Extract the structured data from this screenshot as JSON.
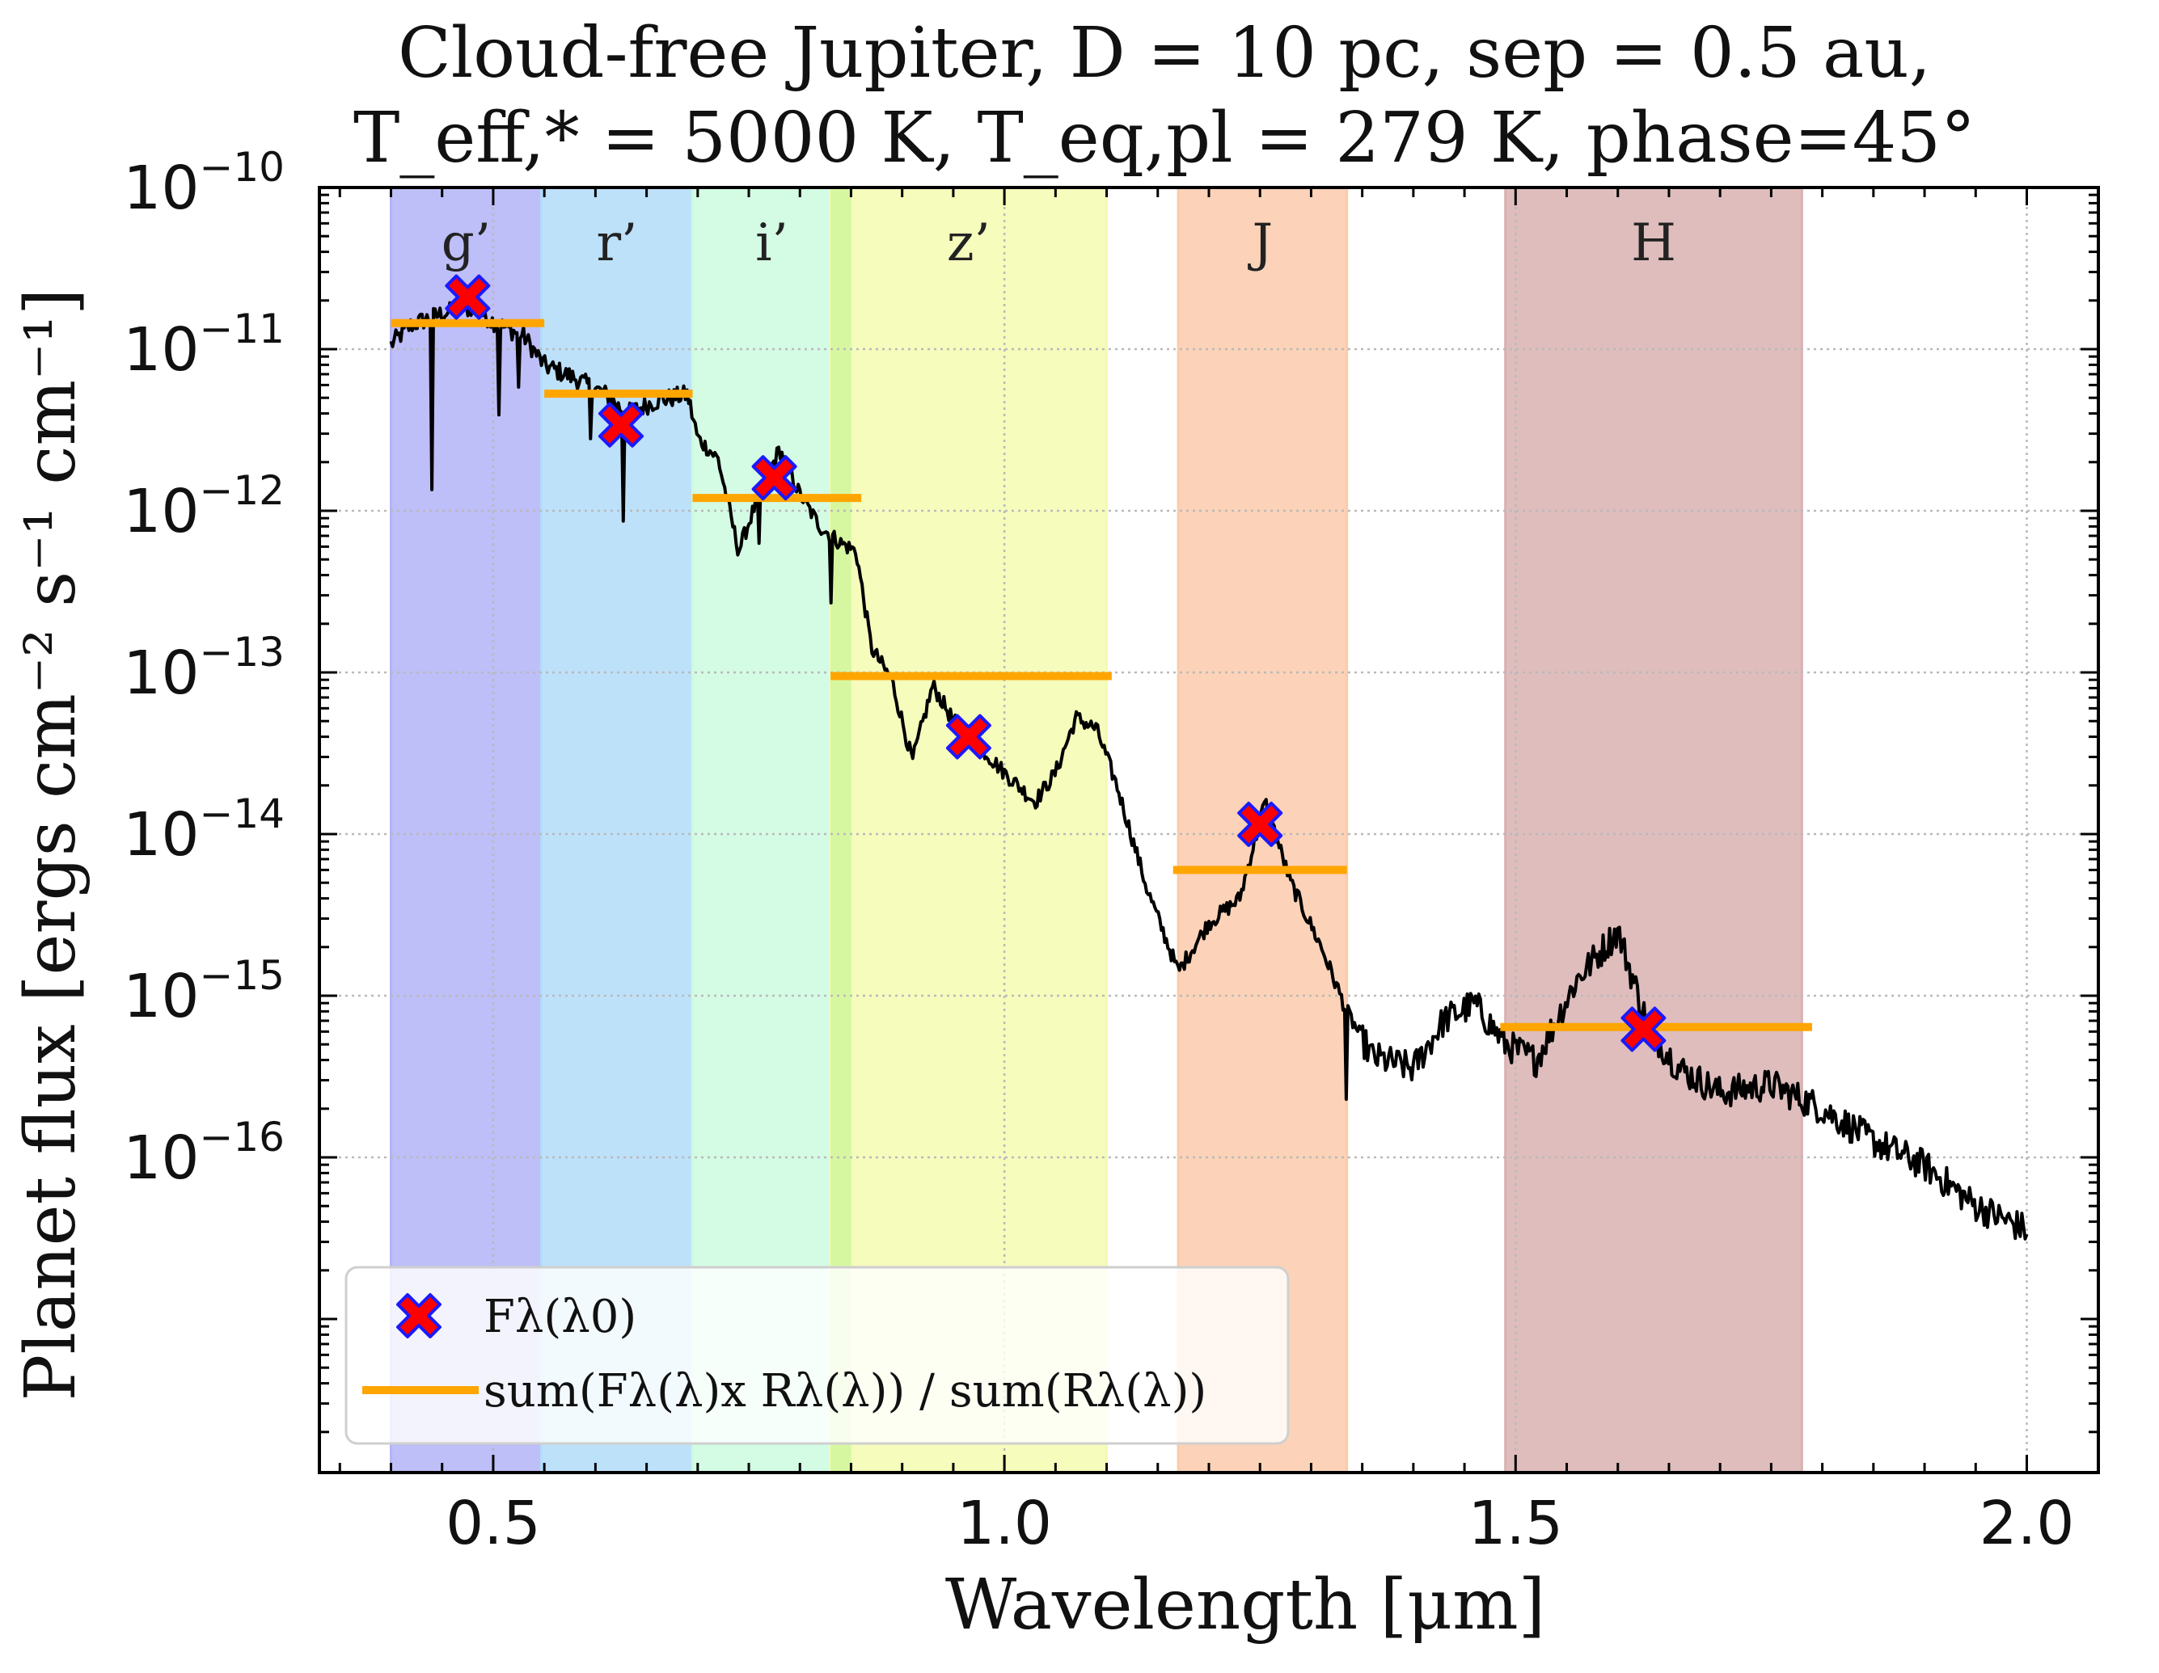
{
  "chart_data": {
    "type": "line",
    "title": "Cloud-free Jupiter, D = 10 pc, sep = 0.5 au,",
    "title_line2": "T_eff,* = 5000 K, T_eq,pl = 279 K, phase=45°",
    "xlabel": "Wavelength [μm]",
    "ylabel": "Planet flux [ergs cm⁻² s⁻¹ cm⁻¹]",
    "xlim": [
      0.33,
      2.07
    ],
    "ylim_log10": [
      -17.95,
      -10.0
    ],
    "y_scale": "log",
    "x_ticks": [
      {
        "value": 0.5,
        "label": "0.5"
      },
      {
        "value": 1.0,
        "label": "1.0"
      },
      {
        "value": 1.5,
        "label": "1.5"
      },
      {
        "value": 2.0,
        "label": "2.0"
      }
    ],
    "y_ticks": [
      {
        "exp": -10,
        "base": "10",
        "sup": "−10"
      },
      {
        "exp": -11,
        "base": "10",
        "sup": "−11"
      },
      {
        "exp": -12,
        "base": "10",
        "sup": "−12"
      },
      {
        "exp": -13,
        "base": "10",
        "sup": "−13"
      },
      {
        "exp": -14,
        "base": "10",
        "sup": "−14"
      },
      {
        "exp": -15,
        "base": "10",
        "sup": "−15"
      },
      {
        "exp": -16,
        "base": "10",
        "sup": "−16"
      }
    ],
    "grid": true,
    "bands": [
      {
        "label": "g’",
        "x0": 0.4,
        "x1": 0.547,
        "color": "#b3b3f7"
      },
      {
        "label": "r’",
        "x0": 0.547,
        "x1": 0.695,
        "color": "#b3dcf9"
      },
      {
        "label": "i’",
        "x0": 0.695,
        "x1": 0.85,
        "color": "#ccfadf"
      },
      {
        "label": "z’",
        "x0": 0.83,
        "x1": 1.1,
        "color": "#f3fbb0"
      },
      {
        "label": "J",
        "x0": 1.17,
        "x1": 1.335,
        "color": "#fbcbab"
      },
      {
        "label": "H",
        "x0": 1.49,
        "x1": 1.78,
        "color": "#d9b1b1"
      }
    ],
    "spectrum_anchors": [
      [
        0.4,
        -10.97
      ],
      [
        0.42,
        -10.85
      ],
      [
        0.45,
        -10.78
      ],
      [
        0.48,
        -10.74
      ],
      [
        0.5,
        -10.83
      ],
      [
        0.53,
        -10.92
      ],
      [
        0.55,
        -11.1
      ],
      [
        0.58,
        -11.18
      ],
      [
        0.61,
        -11.28
      ],
      [
        0.63,
        -11.4
      ],
      [
        0.66,
        -11.32
      ],
      [
        0.69,
        -11.28
      ],
      [
        0.7,
        -11.55
      ],
      [
        0.72,
        -11.68
      ],
      [
        0.74,
        -12.25
      ],
      [
        0.76,
        -11.9
      ],
      [
        0.78,
        -11.62
      ],
      [
        0.8,
        -11.9
      ],
      [
        0.82,
        -12.1
      ],
      [
        0.84,
        -12.2
      ],
      [
        0.855,
        -12.25
      ],
      [
        0.87,
        -12.85
      ],
      [
        0.89,
        -13.05
      ],
      [
        0.91,
        -13.55
      ],
      [
        0.93,
        -13.08
      ],
      [
        0.95,
        -13.3
      ],
      [
        0.97,
        -13.42
      ],
      [
        1.0,
        -13.62
      ],
      [
        1.03,
        -13.8
      ],
      [
        1.05,
        -13.62
      ],
      [
        1.07,
        -13.28
      ],
      [
        1.09,
        -13.35
      ],
      [
        1.11,
        -13.7
      ],
      [
        1.14,
        -14.35
      ],
      [
        1.17,
        -14.85
      ],
      [
        1.2,
        -14.55
      ],
      [
        1.23,
        -14.4
      ],
      [
        1.255,
        -13.8
      ],
      [
        1.28,
        -14.3
      ],
      [
        1.31,
        -14.7
      ],
      [
        1.335,
        -15.1
      ],
      [
        1.36,
        -15.38
      ],
      [
        1.4,
        -15.45
      ],
      [
        1.43,
        -15.15
      ],
      [
        1.46,
        -15.05
      ],
      [
        1.49,
        -15.3
      ],
      [
        1.52,
        -15.4
      ],
      [
        1.56,
        -14.9
      ],
      [
        1.6,
        -14.6
      ],
      [
        1.63,
        -15.2
      ],
      [
        1.66,
        -15.45
      ],
      [
        1.7,
        -15.6
      ],
      [
        1.75,
        -15.55
      ],
      [
        1.8,
        -15.7
      ],
      [
        1.85,
        -15.9
      ],
      [
        1.9,
        -16.05
      ],
      [
        1.95,
        -16.3
      ],
      [
        2.0,
        -16.45
      ]
    ],
    "markers": {
      "name": "Fλ(λ0)",
      "points": [
        {
          "x": 0.475,
          "y": 2.1e-11
        },
        {
          "x": 0.625,
          "y": 3.4e-12
        },
        {
          "x": 0.775,
          "y": 1.6e-12
        },
        {
          "x": 0.965,
          "y": 4e-14
        },
        {
          "x": 1.25,
          "y": 1.15e-14
        },
        {
          "x": 1.625,
          "y": 6.2e-16
        }
      ]
    },
    "band_means": {
      "name": "sum(Fλ(λ)x Rλ(λ)) / sum(Rλ(λ))",
      "segments": [
        {
          "x0": 0.4,
          "x1": 0.55,
          "y": 1.45e-11
        },
        {
          "x0": 0.55,
          "x1": 0.695,
          "y": 5.3e-12
        },
        {
          "x0": 0.695,
          "x1": 0.86,
          "y": 1.2e-12
        },
        {
          "x0": 0.83,
          "x1": 1.105,
          "y": 9.5e-14
        },
        {
          "x0": 1.165,
          "x1": 1.335,
          "y": 6e-15
        },
        {
          "x0": 1.485,
          "x1": 1.79,
          "y": 6.4e-16
        }
      ]
    },
    "legend": {
      "position": "lower-left",
      "entries": [
        {
          "label": "Fλ(λ0)",
          "marker": "x"
        },
        {
          "label": "sum(Fλ(λ)x Rλ(λ)) / sum(Rλ(λ))",
          "marker": "line"
        }
      ]
    },
    "colors": {
      "spectrum": "#000000",
      "marker_fill": "#ff0000",
      "marker_edge": "#1a1aff",
      "band_mean": "#ffa500"
    }
  }
}
